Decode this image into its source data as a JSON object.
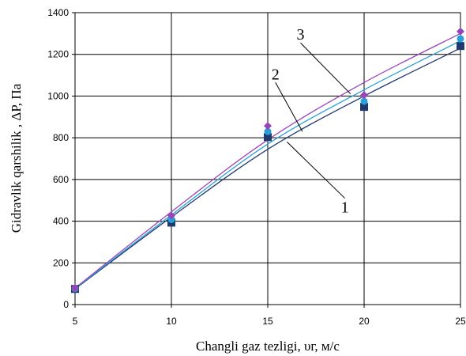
{
  "chart_data": {
    "type": "scatter",
    "title": "",
    "xlabel": "Changli gaz tezligi, υг, м/с",
    "ylabel": "Gidravlik qarshilik , ΔP, Па",
    "xlim": [
      5,
      25
    ],
    "ylim": [
      0,
      1400
    ],
    "x_ticks": [
      "5",
      "10",
      "15",
      "20",
      "25"
    ],
    "y_ticks": [
      "0",
      "200",
      "400",
      "600",
      "800",
      "1000",
      "1200",
      "1400"
    ],
    "grid": true,
    "legend": "none",
    "x": [
      5,
      10,
      15,
      20,
      25
    ],
    "series": [
      {
        "marker": "square",
        "color": "#1f3a6e",
        "points": [
          75,
          393,
          803,
          948,
          1240
        ],
        "fit": [
          75,
          420,
          745,
          1000,
          1230
        ]
      },
      {
        "marker": "circle",
        "color": "#2aa0d8",
        "points": [
          77,
          408,
          830,
          975,
          1275
        ],
        "fit": [
          77,
          430,
          770,
          1030,
          1265
        ]
      },
      {
        "marker": "diamond",
        "color": "#9b44b8",
        "points": [
          79,
          427,
          857,
          1005,
          1310
        ],
        "fit": [
          79,
          445,
          790,
          1065,
          1300
        ]
      }
    ],
    "annotations": [
      {
        "text": "1",
        "target": [
          16,
          780
        ],
        "label_at": [
          19,
          510
        ]
      },
      {
        "text": "2",
        "target": [
          16.8,
          830
        ],
        "label_at": [
          15.4,
          1065
        ]
      },
      {
        "text": "3",
        "target": [
          19.3,
          1010
        ],
        "label_at": [
          16.7,
          1255
        ]
      }
    ]
  }
}
